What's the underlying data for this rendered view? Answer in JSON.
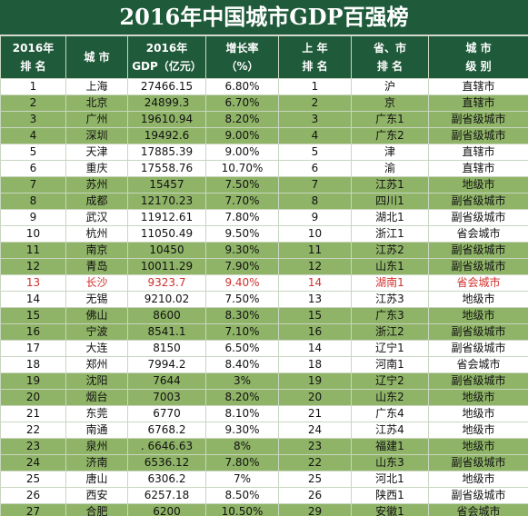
{
  "header": {
    "title": "2016年中国城市GDP百强榜"
  },
  "table": {
    "columns": [
      {
        "lines": [
          "2016年",
          "排 名"
        ]
      },
      {
        "lines": [
          "城 市"
        ]
      },
      {
        "lines": [
          "2016年",
          "GDP（亿元）"
        ]
      },
      {
        "lines": [
          "增长率",
          "（%）"
        ]
      },
      {
        "lines": [
          "上 年",
          "排 名"
        ]
      },
      {
        "lines": [
          "省、市",
          "排 名"
        ]
      },
      {
        "lines": [
          "城 市",
          "级 别"
        ]
      }
    ],
    "rows": [
      [
        "1",
        "上海",
        "27466.15",
        "6.80%",
        "1",
        "沪",
        "直辖市"
      ],
      [
        "2",
        "北京",
        "24899.3",
        "6.70%",
        "2",
        "京",
        "直辖市"
      ],
      [
        "3",
        "广州",
        "19610.94",
        "8.20%",
        "3",
        "广东1",
        "副省级城市"
      ],
      [
        "4",
        "深圳",
        "19492.6",
        "9.00%",
        "4",
        "广东2",
        "副省级城市"
      ],
      [
        "5",
        "天津",
        "17885.39",
        "9.00%",
        "5",
        "津",
        "直辖市"
      ],
      [
        "6",
        "重庆",
        "17558.76",
        "10.70%",
        "6",
        "渝",
        "直辖市"
      ],
      [
        "7",
        "苏州",
        "15457",
        "7.50%",
        "7",
        "江苏1",
        "地级市"
      ],
      [
        "8",
        "成都",
        "12170.23",
        "7.70%",
        "8",
        "四川1",
        "副省级城市"
      ],
      [
        "9",
        "武汉",
        "11912.61",
        "7.80%",
        "9",
        "湖北1",
        "副省级城市"
      ],
      [
        "10",
        "杭州",
        "11050.49",
        "9.50%",
        "10",
        "浙江1",
        "省会城市"
      ],
      [
        "11",
        "南京",
        "10450",
        "9.30%",
        "11",
        "江苏2",
        "副省级城市"
      ],
      [
        "12",
        "青岛",
        "10011.29",
        "7.90%",
        "12",
        "山东1",
        "副省级城市"
      ],
      [
        "13",
        "长沙",
        "9323.7",
        "9.40%",
        "14",
        "湖南1",
        "省会城市"
      ],
      [
        "14",
        "无锡",
        "9210.02",
        "7.50%",
        "13",
        "江苏3",
        "地级市"
      ],
      [
        "15",
        "佛山",
        "8600",
        "8.30%",
        "15",
        "广东3",
        "地级市"
      ],
      [
        "16",
        "宁波",
        "8541.1",
        "7.10%",
        "16",
        "浙江2",
        "副省级城市"
      ],
      [
        "17",
        "大连",
        "8150",
        "6.50%",
        "14",
        "辽宁1",
        "副省级城市"
      ],
      [
        "18",
        "郑州",
        "7994.2",
        "8.40%",
        "18",
        "河南1",
        "省会城市"
      ],
      [
        "19",
        "沈阳",
        "7644",
        "3%",
        "19",
        "辽宁2",
        "副省级城市"
      ],
      [
        "20",
        "烟台",
        "7003",
        "8.20%",
        "20",
        "山东2",
        "地级市"
      ],
      [
        "21",
        "东莞",
        "6770",
        "8.10%",
        "21",
        "广东4",
        "地级市"
      ],
      [
        "22",
        "南通",
        "6768.2",
        "9.30%",
        "24",
        "江苏4",
        "地级市"
      ],
      [
        "23",
        "泉州",
        ". 6646.63",
        "8%",
        "23",
        "福建1",
        "地级市"
      ],
      [
        "24",
        "济南",
        "6536.12",
        "7.80%",
        "22",
        "山东3",
        "副省级城市"
      ],
      [
        "25",
        "唐山",
        "6306.2",
        "7%",
        "25",
        "河北1",
        "地级市"
      ],
      [
        "26",
        "西安",
        "6257.18",
        "8.50%",
        "26",
        "陕西1",
        "副省级城市"
      ],
      [
        "27",
        "合肥",
        "6200",
        "10.50%",
        "29",
        "安徽1",
        "省会城市"
      ]
    ]
  }
}
